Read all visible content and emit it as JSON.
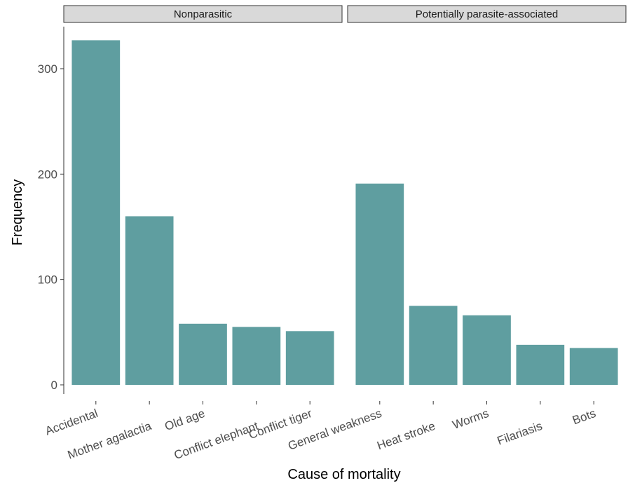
{
  "chart_data": {
    "type": "bar",
    "xlabel": "Cause of mortality",
    "ylabel": "Frequency",
    "ylim": [
      0,
      330
    ],
    "yticks": [
      0,
      100,
      200,
      300
    ],
    "grid": false,
    "bar_color": "#5f9ea0",
    "panels": [
      {
        "strip": "Nonparasitic",
        "categories": [
          "Accidental",
          "Mother agalactia",
          "Old age",
          "Conflict elephant",
          "Conflict tiger"
        ],
        "values": [
          327,
          160,
          58,
          55,
          51
        ]
      },
      {
        "strip": "Potentially parasite-associated",
        "categories": [
          "General weakness",
          "Heat stroke",
          "Worms",
          "Filariasis",
          "Bots"
        ],
        "values": [
          191,
          75,
          66,
          38,
          35
        ]
      }
    ]
  }
}
